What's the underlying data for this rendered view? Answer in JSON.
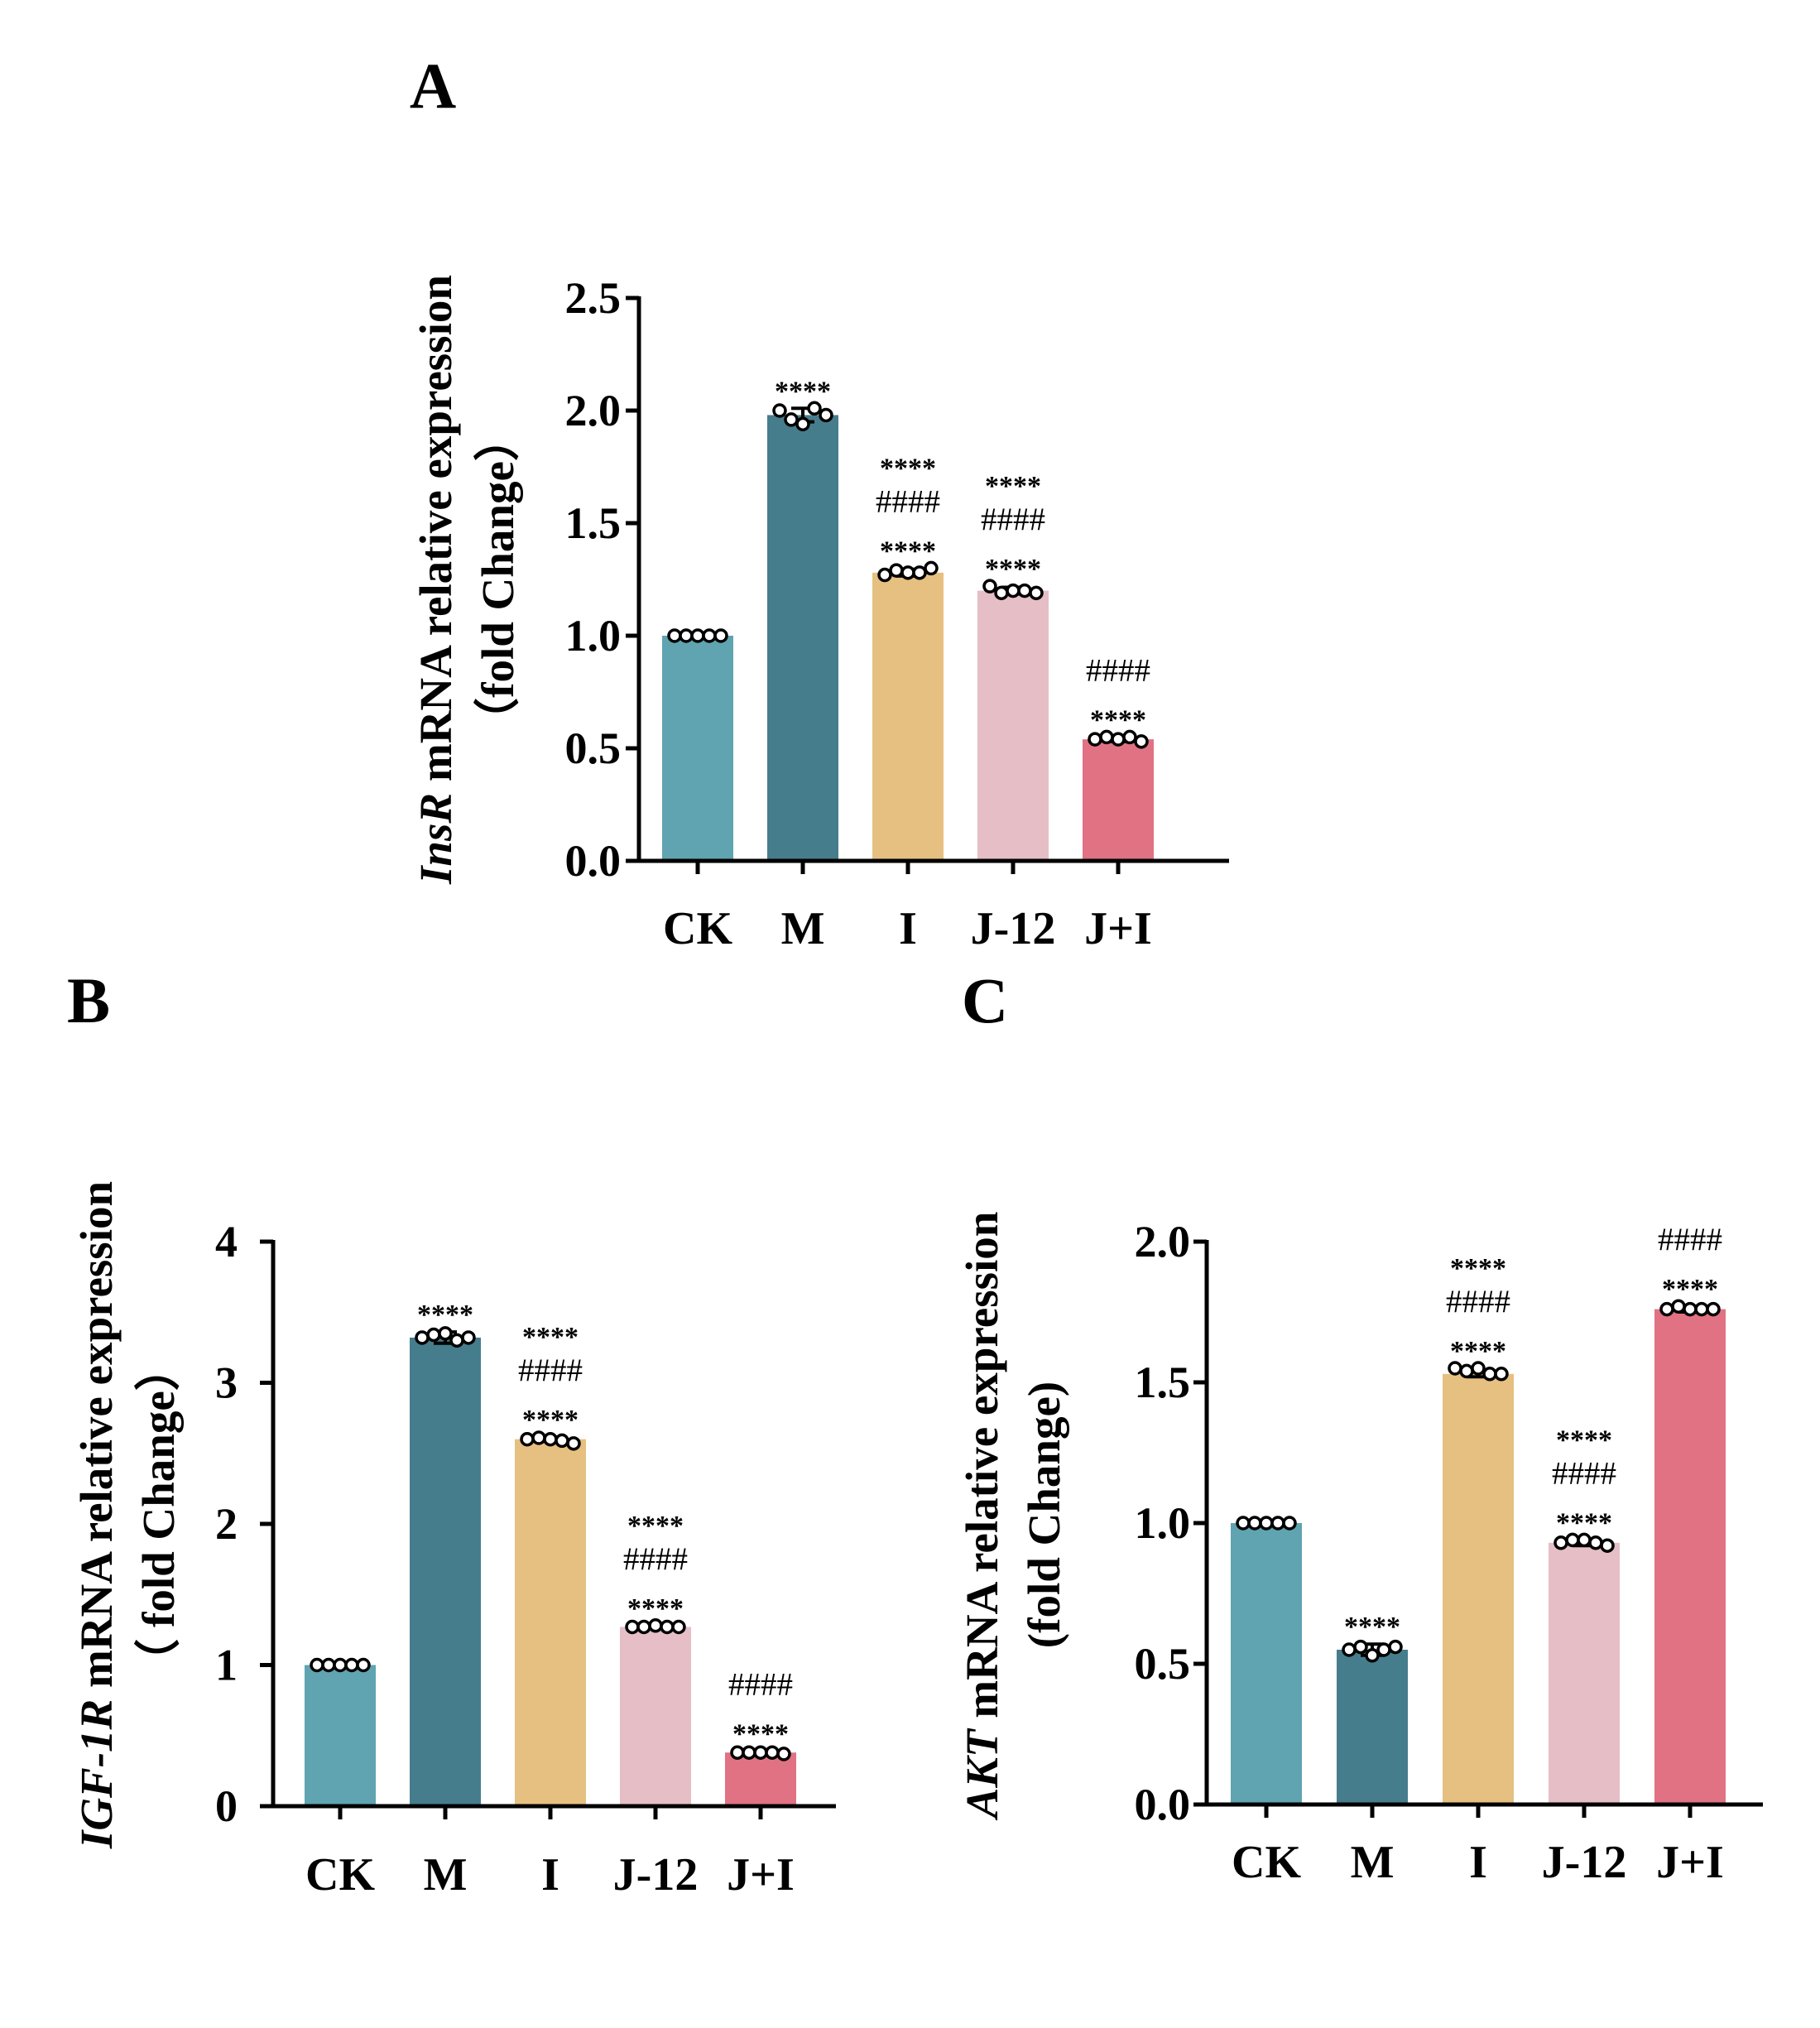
{
  "chart_data": [
    {
      "panel_id": "A",
      "type": "bar",
      "panel_label": "A",
      "ylabel_gene": "InsR",
      "ylabel_rest": " mRNA relative expression",
      "ylabel_line2": "（fold Change）",
      "categories": [
        "CK",
        "M",
        "I",
        "J-12",
        "J+I"
      ],
      "values": [
        1.0,
        1.98,
        1.28,
        1.2,
        0.54
      ],
      "errors": [
        0.0,
        0.03,
        0.015,
        0.015,
        0.01
      ],
      "points": [
        [
          1.0,
          1.0,
          1.0,
          1.0,
          1.0
        ],
        [
          2.0,
          1.96,
          1.94,
          2.01,
          1.98
        ],
        [
          1.27,
          1.29,
          1.28,
          1.28,
          1.3
        ],
        [
          1.22,
          1.19,
          1.2,
          1.2,
          1.19
        ],
        [
          0.54,
          0.55,
          0.54,
          0.55,
          0.53
        ]
      ],
      "ylim": [
        0,
        2.5
      ],
      "yticks": [
        0,
        0.5,
        1.0,
        1.5,
        2.0,
        2.5
      ],
      "ytick_labels": [
        "0.0",
        "0.5",
        "1.0",
        "1.5",
        "2.0",
        "2.5"
      ],
      "significance": [
        [],
        [
          "****"
        ],
        [
          "****",
          "####",
          "****"
        ],
        [
          "****",
          "####",
          "****"
        ],
        [
          "####",
          "****"
        ]
      ],
      "colors": [
        "#5fa4b0",
        "#467d8c",
        "#e6c081",
        "#e6bec6",
        "#e07283"
      ]
    },
    {
      "panel_id": "B",
      "type": "bar",
      "panel_label": "B",
      "ylabel_gene": "IGF-1R",
      "ylabel_rest": " mRNA relative expression",
      "ylabel_line2": "（ fold Change）",
      "categories": [
        "CK",
        "M",
        "I",
        "J-12",
        "J+I"
      ],
      "values": [
        1.0,
        3.32,
        2.6,
        1.27,
        0.38
      ],
      "errors": [
        0.0,
        0.04,
        0.015,
        0.01,
        0.01
      ],
      "points": [
        [
          1.0,
          1.0,
          1.0,
          1.0,
          1.0
        ],
        [
          3.32,
          3.34,
          3.35,
          3.3,
          3.32
        ],
        [
          2.6,
          2.61,
          2.6,
          2.59,
          2.57
        ],
        [
          1.27,
          1.27,
          1.28,
          1.27,
          1.27
        ],
        [
          0.38,
          0.38,
          0.38,
          0.38,
          0.37
        ]
      ],
      "ylim": [
        0,
        4
      ],
      "yticks": [
        0,
        1,
        2,
        3,
        4
      ],
      "ytick_labels": [
        "0",
        "1",
        "2",
        "3",
        "4"
      ],
      "significance": [
        [],
        [
          "****"
        ],
        [
          "****",
          "####",
          "****"
        ],
        [
          "****",
          "####",
          "****"
        ],
        [
          "####",
          "****"
        ]
      ],
      "colors": [
        "#5fa4b0",
        "#467d8c",
        "#e6c081",
        "#e6bec6",
        "#e07283"
      ]
    },
    {
      "panel_id": "C",
      "type": "bar",
      "panel_label": "C",
      "ylabel_gene": "AKT",
      "ylabel_rest": " mRNA relative expression",
      "ylabel_line2": "(fold Change)",
      "categories": [
        "CK",
        "M",
        "I",
        "J-12",
        "J+I"
      ],
      "values": [
        1.0,
        0.55,
        1.53,
        0.93,
        1.76
      ],
      "errors": [
        0.0,
        0.02,
        0.01,
        0.01,
        0.01
      ],
      "points": [
        [
          1.0,
          1.0,
          1.0,
          1.0,
          1.0
        ],
        [
          0.55,
          0.56,
          0.53,
          0.55,
          0.56
        ],
        [
          1.55,
          1.54,
          1.55,
          1.53,
          1.53
        ],
        [
          0.93,
          0.94,
          0.94,
          0.93,
          0.92
        ],
        [
          1.76,
          1.77,
          1.76,
          1.76,
          1.76
        ]
      ],
      "ylim": [
        0,
        2.0
      ],
      "yticks": [
        0,
        0.5,
        1.0,
        1.5,
        2.0
      ],
      "ytick_labels": [
        "0.0",
        "0.5",
        "1.0",
        "1.5",
        "2.0"
      ],
      "significance": [
        [],
        [
          "****"
        ],
        [
          "****",
          "####",
          "****"
        ],
        [
          "****",
          "####",
          "****"
        ],
        [
          "####",
          "****"
        ]
      ],
      "colors": [
        "#5fa4b0",
        "#467d8c",
        "#e6c081",
        "#e6bec6",
        "#e07283"
      ]
    }
  ]
}
